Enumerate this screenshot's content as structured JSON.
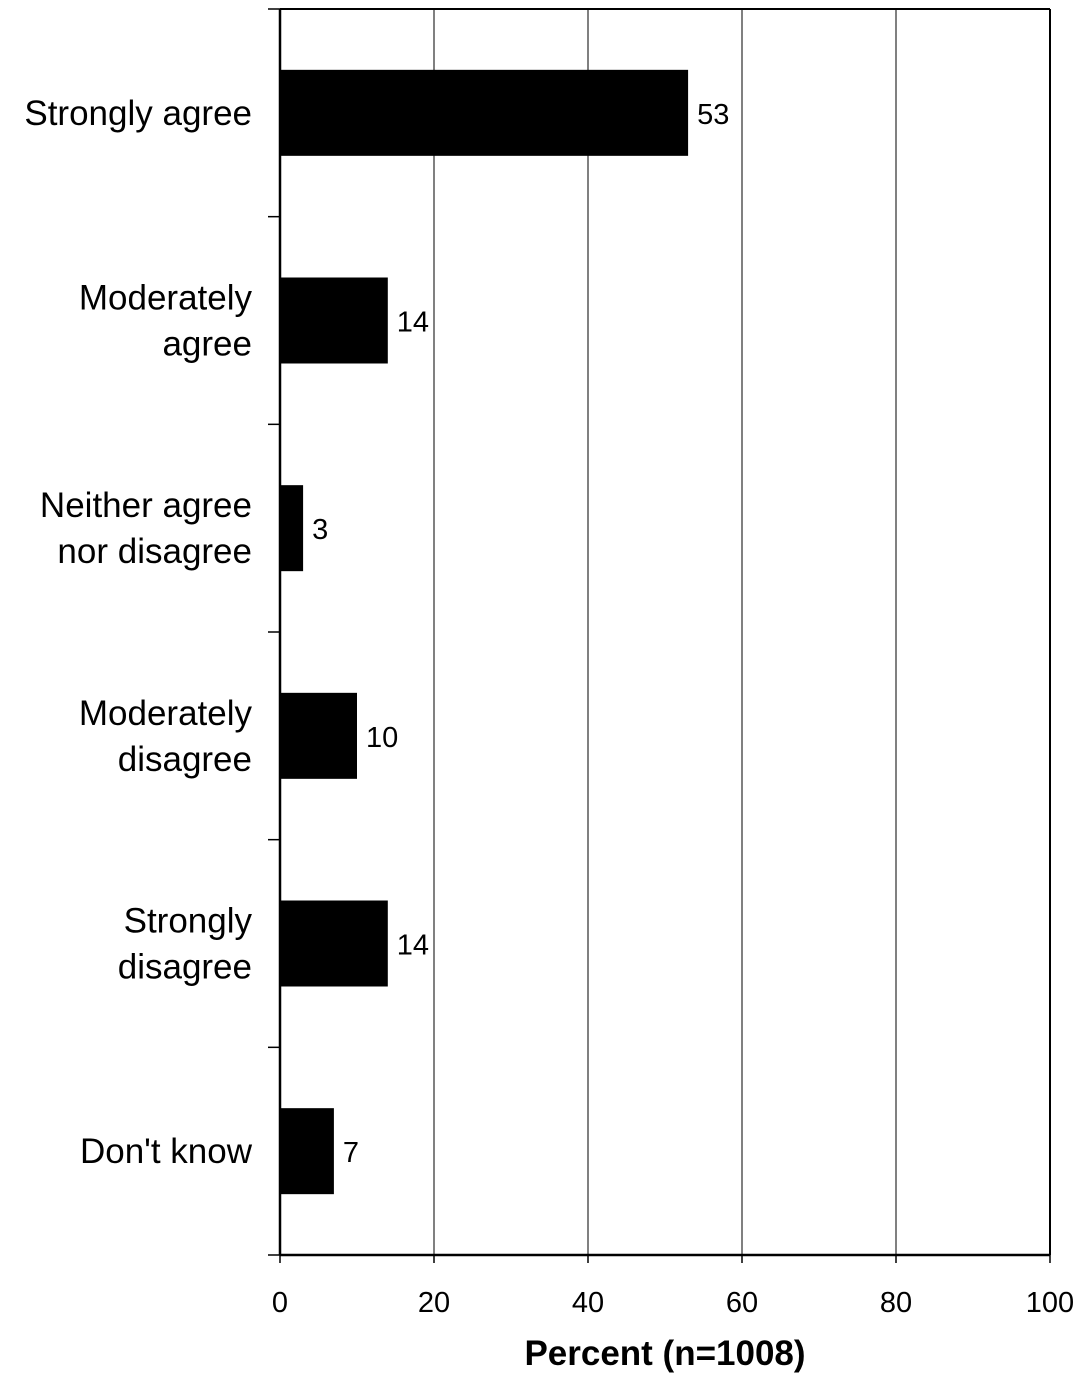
{
  "chart_data": {
    "type": "bar",
    "orientation": "horizontal",
    "categories": [
      [
        "Strongly agree"
      ],
      [
        "Moderately",
        "agree"
      ],
      [
        "Neither agree",
        "nor disagree"
      ],
      [
        "Moderately",
        "disagree"
      ],
      [
        "Strongly",
        "disagree"
      ],
      [
        "Don't know"
      ]
    ],
    "values": [
      53,
      14,
      3,
      10,
      14,
      7
    ],
    "data_labels": [
      "53",
      "14",
      "3",
      "10",
      "14",
      "7"
    ],
    "xlabel": "Percent (n=1008)",
    "ylabel": "",
    "xlim": [
      0,
      100
    ],
    "xticks": [
      0,
      20,
      40,
      60,
      80,
      100
    ],
    "tick_labels": [
      "0",
      "20",
      "40",
      "60",
      "80",
      "100"
    ],
    "grid": "vertical",
    "legend": "none",
    "colors": {
      "bar": "#000000",
      "grid": "#000000",
      "background": "#ffffff"
    }
  }
}
